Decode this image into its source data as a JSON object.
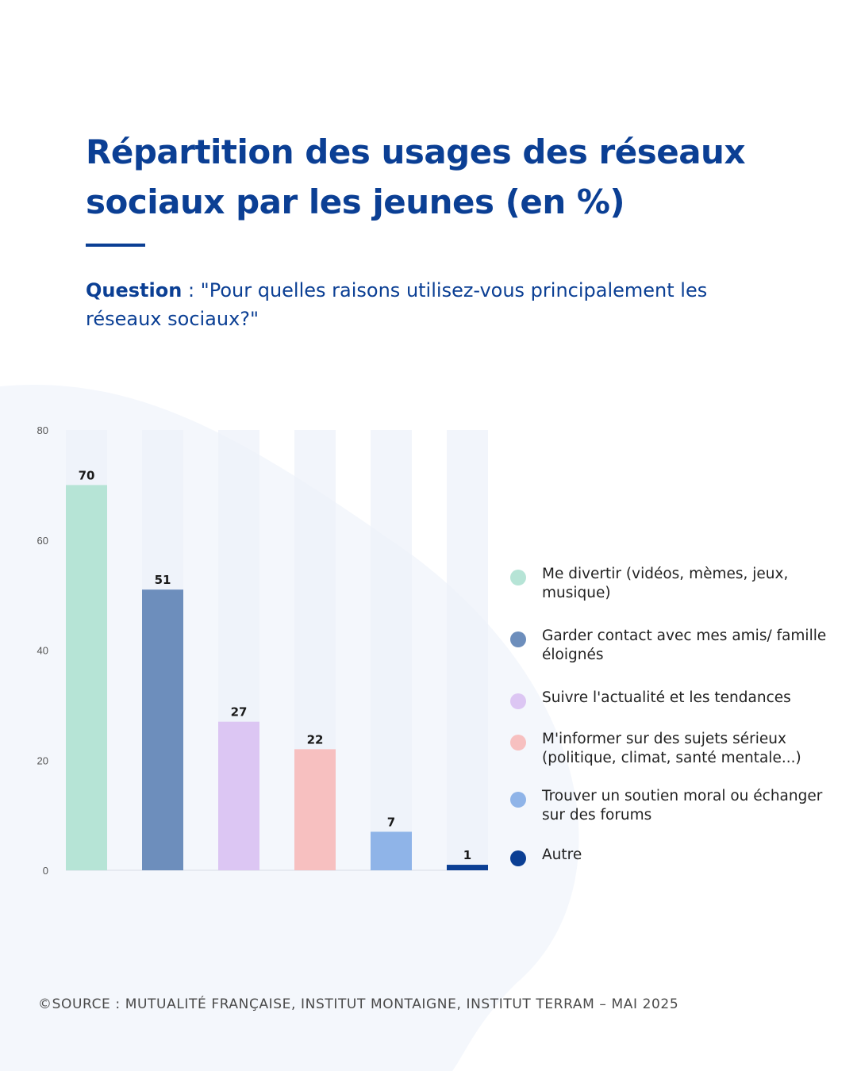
{
  "title": "Répartition des usages des réseaux sociaux par les jeunes (en %)",
  "question": {
    "label": "Question",
    "separator": " : ",
    "text": "\"Pour quelles raisons utilisez-vous principalement les réseaux sociaux?\""
  },
  "source": {
    "icon": "copyright-icon",
    "label": "SOURCE",
    "separator": " : ",
    "text": "MUTUALITÉ FRANÇAISE, INSTITUT MONTAIGNE, INSTITUT TERRAM – MAI 2025"
  },
  "colors": {
    "title": "#0b3f94",
    "track": "#eef2f9",
    "background_blob": "#f4f7fc"
  },
  "chart_data": {
    "type": "bar",
    "title": "Répartition des usages des réseaux sociaux par les jeunes (en %)",
    "xlabel": "",
    "ylabel": "",
    "ylim": [
      0,
      80
    ],
    "y_ticks": [
      0,
      20,
      40,
      60,
      80
    ],
    "grid": false,
    "legend_position": "right",
    "categories": [
      "Me divertir (vidéos, mèmes, jeux, musique)",
      "Garder contact avec mes amis/ famille éloignés",
      "Suivre l'actualité et les tendances",
      "M'informer sur des sujets sérieux (politique, climat, santé mentale...)",
      "Trouver un soutien moral ou échanger sur des forums",
      "Autre"
    ],
    "values": [
      70,
      51,
      27,
      22,
      7,
      1
    ],
    "colors": [
      "#b6e4d6",
      "#6d8ebc",
      "#dcc6f3",
      "#f7c0c0",
      "#8fb4e8",
      "#0b3f94"
    ]
  }
}
